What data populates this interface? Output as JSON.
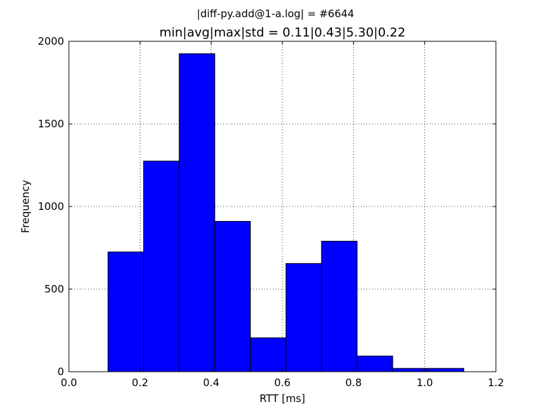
{
  "chart_data": {
    "type": "bar",
    "supertitle": "|diff-py.add@1-a.log| = #6644",
    "title": "min|avg|max|std = 0.11|0.43|5.30|0.22",
    "xlabel": "RTT [ms]",
    "ylabel": "Frequency",
    "xlim": [
      0.0,
      1.2
    ],
    "ylim": [
      0,
      2000
    ],
    "xticks": [
      "0.0",
      "0.2",
      "0.4",
      "0.6",
      "0.8",
      "1.0",
      "1.2"
    ],
    "yticks": [
      "0",
      "500",
      "1000",
      "1500",
      "2000"
    ],
    "grid": true,
    "bins": [
      {
        "x0": 0.11,
        "x1": 0.21,
        "value": 725
      },
      {
        "x0": 0.21,
        "x1": 0.31,
        "value": 1275
      },
      {
        "x0": 0.31,
        "x1": 0.41,
        "value": 1925
      },
      {
        "x0": 0.41,
        "x1": 0.51,
        "value": 910
      },
      {
        "x0": 0.51,
        "x1": 0.61,
        "value": 205
      },
      {
        "x0": 0.61,
        "x1": 0.71,
        "value": 655
      },
      {
        "x0": 0.71,
        "x1": 0.81,
        "value": 790
      },
      {
        "x0": 0.81,
        "x1": 0.91,
        "value": 95
      },
      {
        "x0": 0.91,
        "x1": 1.01,
        "value": 20
      },
      {
        "x0": 1.01,
        "x1": 1.11,
        "value": 20
      }
    ],
    "bar_color": "#0000ff",
    "edge_color": "#000000"
  }
}
